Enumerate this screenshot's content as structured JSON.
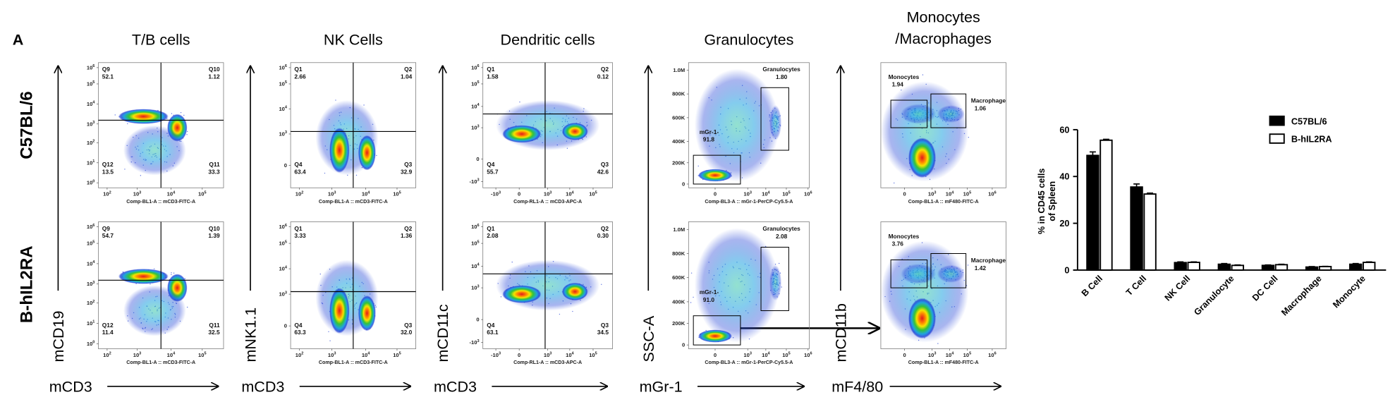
{
  "panel_label": "A",
  "row_labels": [
    "C57BL/6",
    "B-hIL2RA"
  ],
  "panels": [
    {
      "title": "T/B cells",
      "x_marker": "mCD3",
      "y_marker": "mCD19",
      "x_axis_label": "Comp-BL1-A :: mCD3-FITC-A",
      "x_ticks": [
        {
          "base": "10",
          "exponent": 2
        },
        {
          "base": "10",
          "exponent": 3
        },
        {
          "base": "10",
          "exponent": 4
        },
        {
          "base": "10",
          "exponent": 5
        }
      ],
      "y_ticks": [
        {
          "base": "10",
          "exponent": 6
        },
        {
          "base": "10",
          "exponent": 5
        },
        {
          "base": "10",
          "exponent": 4
        },
        {
          "base": "10",
          "exponent": 3
        },
        {
          "base": "10",
          "exponent": 2
        },
        {
          "base": "10",
          "exponent": 1
        },
        {
          "base": "10",
          "exponent": 0
        }
      ],
      "plots": [
        {
          "gates": [
            {
              "name": "Q9",
              "value": 52.1
            },
            {
              "name": "Q10",
              "value": 1.12
            },
            {
              "name": "Q12",
              "value": 13.5
            },
            {
              "name": "Q11",
              "value": 33.3
            }
          ]
        },
        {
          "gates": [
            {
              "name": "Q9",
              "value": 54.7
            },
            {
              "name": "Q10",
              "value": 1.39
            },
            {
              "name": "Q12",
              "value": 11.4
            },
            {
              "name": "Q11",
              "value": 32.5
            }
          ]
        }
      ]
    },
    {
      "title": "NK Cells",
      "x_marker": "mCD3",
      "y_marker": "mNK1.1",
      "x_axis_label": "Comp-BL1-A :: mCD3-FITC-A",
      "x_ticks": [
        {
          "base": "10",
          "exponent": 2
        },
        {
          "base": "10",
          "exponent": 3
        },
        {
          "base": "10",
          "exponent": 4
        },
        {
          "base": "10",
          "exponent": 5
        }
      ],
      "y_ticks": [
        {
          "base": "10",
          "exponent": 6
        },
        {
          "base": "10",
          "exponent": 5
        },
        {
          "base": "10",
          "exponent": 4
        },
        {
          "base": "10",
          "exponent": 3
        },
        "0"
      ],
      "plots": [
        {
          "gates": [
            {
              "name": "Q1",
              "value": 2.66
            },
            {
              "name": "Q2",
              "value": 1.04
            },
            {
              "name": "Q4",
              "value": 63.4
            },
            {
              "name": "Q3",
              "value": 32.9
            }
          ]
        },
        {
          "gates": [
            {
              "name": "Q1",
              "value": 3.33
            },
            {
              "name": "Q2",
              "value": 1.36
            },
            {
              "name": "Q4",
              "value": 63.3
            },
            {
              "name": "Q3",
              "value": {
                "value": 32,
                "label": "32.0"
              }
            }
          ]
        }
      ]
    },
    {
      "title": "Dendritic cells",
      "x_marker": "mCD3",
      "y_marker": "mCD11c",
      "x_axis_label": "Comp-RL1-A :: mCD3-APC-A",
      "x_ticks": [
        {
          "base": "-10",
          "exponent": 3
        },
        "0",
        {
          "base": "10",
          "exponent": 3
        },
        {
          "base": "10",
          "exponent": 4
        },
        {
          "base": "10",
          "exponent": 5
        }
      ],
      "y_ticks": [
        {
          "base": "10",
          "exponent": 6
        },
        {
          "base": "10",
          "exponent": 5
        },
        {
          "base": "10",
          "exponent": 4
        },
        {
          "base": "10",
          "exponent": 3
        },
        "0",
        {
          "base": "-10",
          "exponent": 3
        }
      ],
      "plots": [
        {
          "gates": [
            {
              "name": "Q1",
              "value": 1.58
            },
            {
              "name": "Q2",
              "value": 0.12
            },
            {
              "name": "Q4",
              "value": 55.7
            },
            {
              "name": "Q3",
              "value": 42.6
            }
          ]
        },
        {
          "gates": [
            {
              "name": "Q1",
              "value": 2.08
            },
            {
              "name": "Q2",
              "value": {
                "value": 0.3,
                "label": "0.30"
              }
            },
            {
              "name": "Q4",
              "value": 63.1
            },
            {
              "name": "Q3",
              "value": 34.5
            }
          ]
        }
      ]
    },
    {
      "title": "Granulocytes",
      "x_marker": "mGr-1",
      "y_marker": "SSC-A",
      "x_axis_label": "Comp-BL3-A :: mGr-1-PerCP-Cy5.5-A",
      "x_ticks": [
        "0",
        {
          "base": "10",
          "exponent": 3
        },
        {
          "base": "10",
          "exponent": 4
        },
        {
          "base": "10",
          "exponent": 5
        },
        {
          "base": "10",
          "exponent": 6
        }
      ],
      "y_ticks": [
        "1.0M",
        "800K",
        "600K",
        "400K",
        "200K",
        "0"
      ],
      "plots": [
        {
          "gates": [
            {
              "name": "Granulocytes",
              "value": {
                "value": 1.8,
                "label": "1.80"
              }
            },
            {
              "name": "mGr-1-",
              "value": 91.8
            }
          ]
        },
        {
          "gates": [
            {
              "name": "Granulocytes",
              "value": 2.08
            },
            {
              "name": "mGr-1-",
              "value": {
                "value": 91,
                "label": "91.0"
              }
            }
          ]
        }
      ]
    },
    {
      "title": [
        "Monocytes",
        "/Macrophages"
      ],
      "x_marker": "mF4/80",
      "y_marker": "mCD11b",
      "x_axis_label": "Comp-BL1-A :: mF480-FITC-A",
      "x_ticks": [
        "0",
        {
          "base": "10",
          "exponent": 3
        },
        {
          "base": "10",
          "exponent": 4
        },
        {
          "base": "10",
          "exponent": 5
        },
        {
          "base": "10",
          "exponent": 6
        }
      ],
      "plots": [
        {
          "gates": [
            {
              "name": "Monocytes",
              "value": 1.94
            },
            {
              "name": "Macrophage",
              "value": 1.06
            }
          ]
        },
        {
          "gates": [
            {
              "name": "Monocytes",
              "value": 3.76
            },
            {
              "name": "Macrophage",
              "value": 1.42
            }
          ]
        }
      ]
    }
  ],
  "chart_data": {
    "type": "bar",
    "y_label": [
      "% in CD45 cells",
      "of Spleen"
    ],
    "categories": [
      "B Cell",
      "T Cell",
      "NK Cell",
      "Granulocyte",
      "DC Cell",
      "Macrophage",
      "Monocyte"
    ],
    "series": [
      {
        "name": "C57BL/6",
        "color": "#000000",
        "values": [
          49,
          35.5,
          3.2,
          2.5,
          2,
          1.3,
          2.5
        ],
        "errors": [
          1.5,
          1.3,
          0.3,
          0.3,
          0.2,
          0.2,
          0.3
        ]
      },
      {
        "name": "B-hIL2RA",
        "color": "#ffffff",
        "values": [
          55.5,
          32.5,
          3.3,
          2,
          2.3,
          1.5,
          3.3
        ],
        "errors": [
          0.4,
          0.4,
          0.2,
          0.2,
          0.2,
          0.1,
          0.2
        ]
      }
    ],
    "ylim": [
      0,
      60
    ],
    "yticks": [
      0,
      20,
      40,
      60
    ],
    "legend": "upper right"
  }
}
